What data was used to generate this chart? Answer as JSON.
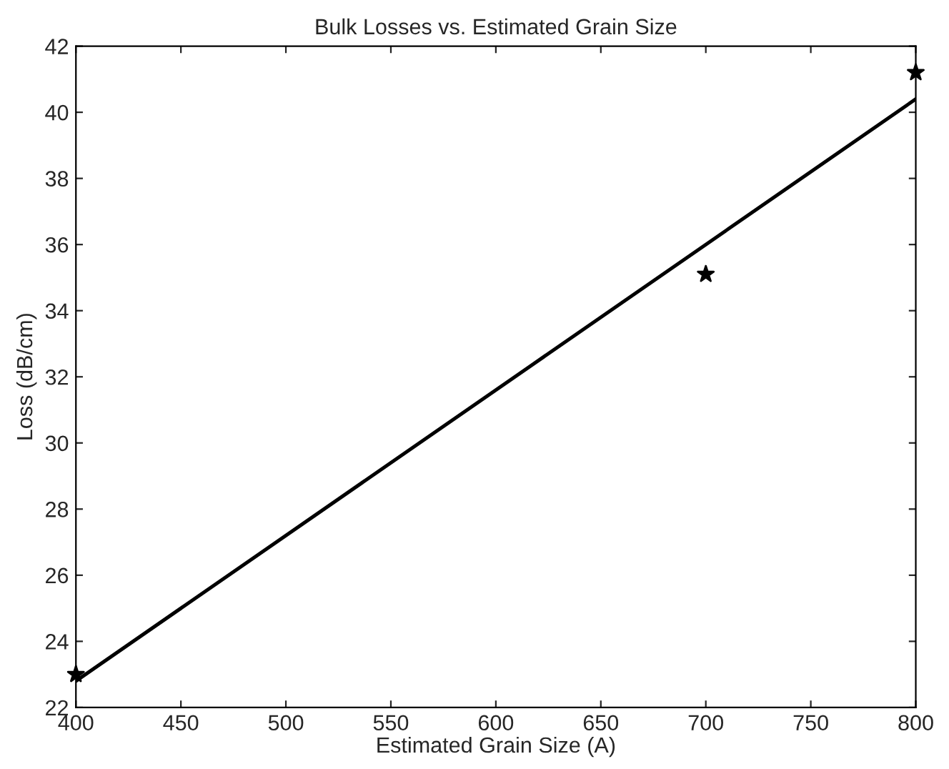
{
  "chart_data": {
    "type": "scatter",
    "title": "Bulk Losses vs. Estimated Grain Size",
    "xlabel": "Estimated Grain Size (A)",
    "ylabel": "Loss (dB/cm)",
    "series": [
      {
        "color": "#000000",
        "marker": "star",
        "x": [
          400,
          700,
          800
        ],
        "values": [
          23.0,
          35.1,
          41.2
        ]
      },
      {
        "type": "line",
        "color": "#000000",
        "marker": "none",
        "line_style": "solid",
        "x": [
          400,
          800
        ],
        "values": [
          22.8,
          40.4
        ]
      }
    ],
    "xlim": [
      400,
      800
    ],
    "ylim": [
      22,
      42
    ],
    "xticks": [
      400,
      450,
      500,
      550,
      600,
      650,
      700,
      750,
      800
    ],
    "yticks": [
      22,
      24,
      26,
      28,
      30,
      32,
      34,
      36,
      38,
      40,
      42
    ],
    "grid": false
  }
}
